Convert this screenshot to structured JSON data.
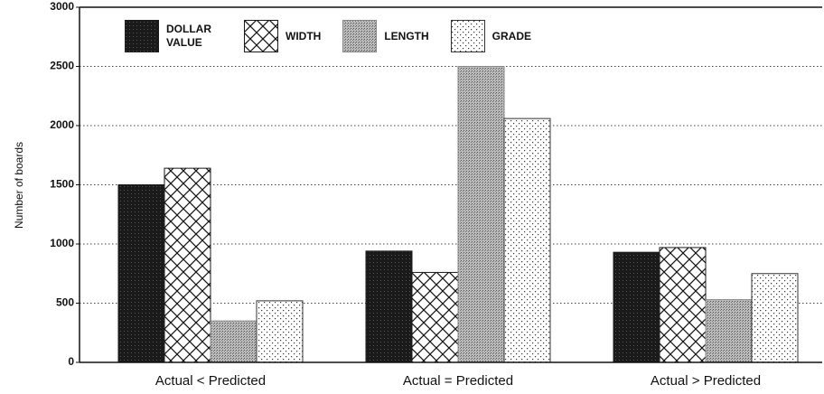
{
  "chart_data": {
    "type": "bar",
    "y_label": "Number of boards",
    "categories": [
      "Actual < Predicted",
      "Actual = Predicted",
      "Actual > Predicted"
    ],
    "series": [
      {
        "name": "DOLLAR VALUE",
        "pattern": "solid",
        "color": "#1a1a1a",
        "values": [
          1500,
          940,
          930
        ]
      },
      {
        "name": "WIDTH",
        "pattern": "crosshatch",
        "color": "#1a1a1a",
        "values": [
          1640,
          760,
          970
        ]
      },
      {
        "name": "LENGTH",
        "pattern": "stipple",
        "color": "#888888",
        "values": [
          350,
          2500,
          530
        ]
      },
      {
        "name": "GRADE",
        "pattern": "dots",
        "color": "#333333",
        "values": [
          520,
          2060,
          750
        ]
      }
    ],
    "ylim": [
      0,
      3000
    ],
    "yticks": [
      0,
      500,
      1000,
      1500,
      2000,
      2500,
      3000
    ],
    "grid": true
  }
}
